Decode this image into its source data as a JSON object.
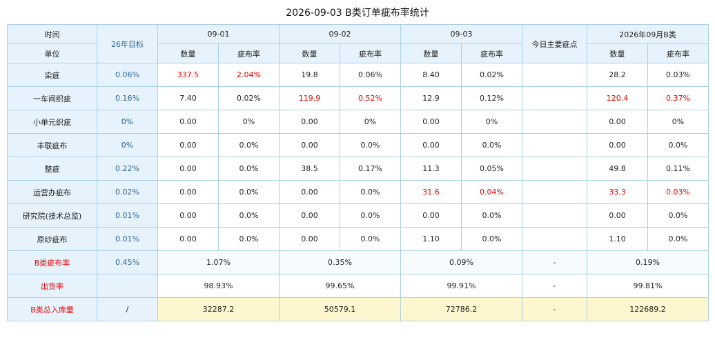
{
  "title": "2026-09-03 B类订单疵布率统计",
  "header": {
    "time_label": "时间",
    "unit_label": "单位",
    "target_label": "26年目标",
    "dates": [
      "09-01",
      "09-02",
      "09-03"
    ],
    "qty_label": "数量",
    "rate_label": "疵布率",
    "main_defect_label": "今日主要疵点",
    "month_label": "2026年09月B类"
  },
  "rows": [
    {
      "unit": "染疵",
      "target": "0.06%",
      "d1_qty": "337.5",
      "d1_rate": "2.04%",
      "d2_qty": "19.8",
      "d2_rate": "0.06%",
      "d3_qty": "8.40",
      "d3_rate": "0.02%",
      "main_defect": "",
      "m_qty": "28.2",
      "m_rate": "0.03%"
    },
    {
      "unit": "一车间织疵",
      "target": "0.16%",
      "d1_qty": "7.40",
      "d1_rate": "0.02%",
      "d2_qty": "119.9",
      "d2_rate": "0.52%",
      "d3_qty": "12.9",
      "d3_rate": "0.12%",
      "main_defect": "",
      "m_qty": "120.4",
      "m_rate": "0.37%"
    },
    {
      "unit": "小单元织疵",
      "target": "0%",
      "d1_qty": "0.00",
      "d1_rate": "0%",
      "d2_qty": "0.00",
      "d2_rate": "0%",
      "d3_qty": "0.00",
      "d3_rate": "0%",
      "main_defect": "",
      "m_qty": "0.00",
      "m_rate": "0%"
    },
    {
      "unit": "丰联疵布",
      "target": "0%",
      "d1_qty": "0.00",
      "d1_rate": "0.0%",
      "d2_qty": "0.00",
      "d2_rate": "0.0%",
      "d3_qty": "0.00",
      "d3_rate": "0.0%",
      "main_defect": "",
      "m_qty": "0.00",
      "m_rate": "0.0%"
    },
    {
      "unit": "整疵",
      "target": "0.22%",
      "d1_qty": "0.00",
      "d1_rate": "0.0%",
      "d2_qty": "38.5",
      "d2_rate": "0.17%",
      "d3_qty": "11.3",
      "d3_rate": "0.05%",
      "main_defect": "",
      "m_qty": "49.8",
      "m_rate": "0.11%"
    },
    {
      "unit": "运营办疵布",
      "target": "0.02%",
      "d1_qty": "0.00",
      "d1_rate": "0.0%",
      "d2_qty": "0.00",
      "d2_rate": "0.0%",
      "d3_qty": "31.6",
      "d3_rate": "0.04%",
      "main_defect": "",
      "m_qty": "33.3",
      "m_rate": "0.03%"
    },
    {
      "unit": "研究院(技术总监)",
      "target": "0.01%",
      "d1_qty": "0.00",
      "d1_rate": "0.0%",
      "d2_qty": "0.00",
      "d2_rate": "0.0%",
      "d3_qty": "0.00",
      "d3_rate": "0.0%",
      "main_defect": "",
      "m_qty": "0.00",
      "m_rate": "0.0%"
    },
    {
      "unit": "原纱疵布",
      "target": "0.01%",
      "d1_qty": "0.00",
      "d1_rate": "0.0%",
      "d2_qty": "0.00",
      "d2_rate": "0.0%",
      "d3_qty": "1.10",
      "d3_rate": "0.0%",
      "main_defect": "",
      "m_qty": "1.10",
      "m_rate": "0.0%"
    }
  ],
  "summary": {
    "b_rate": {
      "label": "B类疵布率",
      "target": "0.45%",
      "d1": "1.07%",
      "d2": "0.35%",
      "d3": "0.09%",
      "main_defect": "-",
      "month": "0.19%"
    },
    "shipping": {
      "label": "出货率",
      "target": "",
      "d1": "98.93%",
      "d2": "99.65%",
      "d3": "99.91%",
      "main_defect": "-",
      "month": "99.81%"
    },
    "total_in": {
      "label": "B类总入库量",
      "target": "/",
      "d1": "32287.2",
      "d2": "50579.1",
      "d3": "72786.2",
      "main_defect": "-",
      "month": "122689.2"
    }
  },
  "colors": {
    "header_bg": "#e7f3fc",
    "border": "#a9d1e3",
    "alert_red": "#e60000",
    "target_blue": "#2a6496",
    "total_row_yellow": "#fdf6cf"
  }
}
